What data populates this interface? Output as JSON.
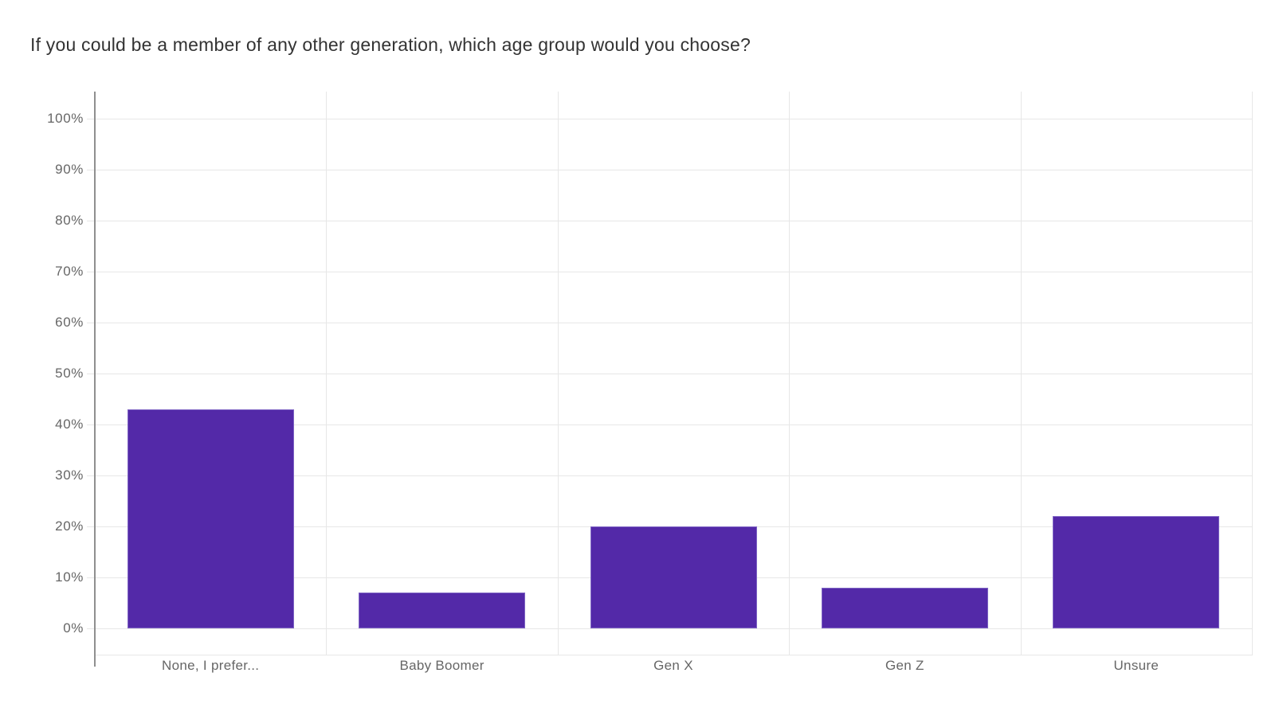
{
  "page": {
    "background": "#ffffff"
  },
  "chart_data": {
    "type": "bar",
    "title": "If you could be a member of any other generation, which age group would you choose?",
    "categories": [
      "None, I prefer...",
      "Baby Boomer",
      "Gen X",
      "Gen Z",
      "Unsure"
    ],
    "values": [
      43,
      7,
      20,
      8,
      22
    ],
    "value_unit": "%",
    "xlabel": "",
    "ylabel": "",
    "ylim": [
      0,
      100
    ],
    "y_ticks": [
      {
        "value": 0,
        "label": "0%"
      },
      {
        "value": 10,
        "label": "10%"
      },
      {
        "value": 20,
        "label": "20%"
      },
      {
        "value": 30,
        "label": "30%"
      },
      {
        "value": 40,
        "label": "40%"
      },
      {
        "value": 50,
        "label": "50%"
      },
      {
        "value": 60,
        "label": "60%"
      },
      {
        "value": 70,
        "label": "70%"
      },
      {
        "value": 80,
        "label": "80%"
      },
      {
        "value": 90,
        "label": "90%"
      },
      {
        "value": 100,
        "label": "100%"
      }
    ],
    "grid": true,
    "legend": "none",
    "colors": {
      "bar_fill": "#5329A8",
      "bar_border": "#7E64C4",
      "axis_line": "#8F8F8F",
      "gridline": "#E7E7E7",
      "title_text": "#333333",
      "tick_text": "#666666",
      "category_text": "#666666"
    }
  }
}
